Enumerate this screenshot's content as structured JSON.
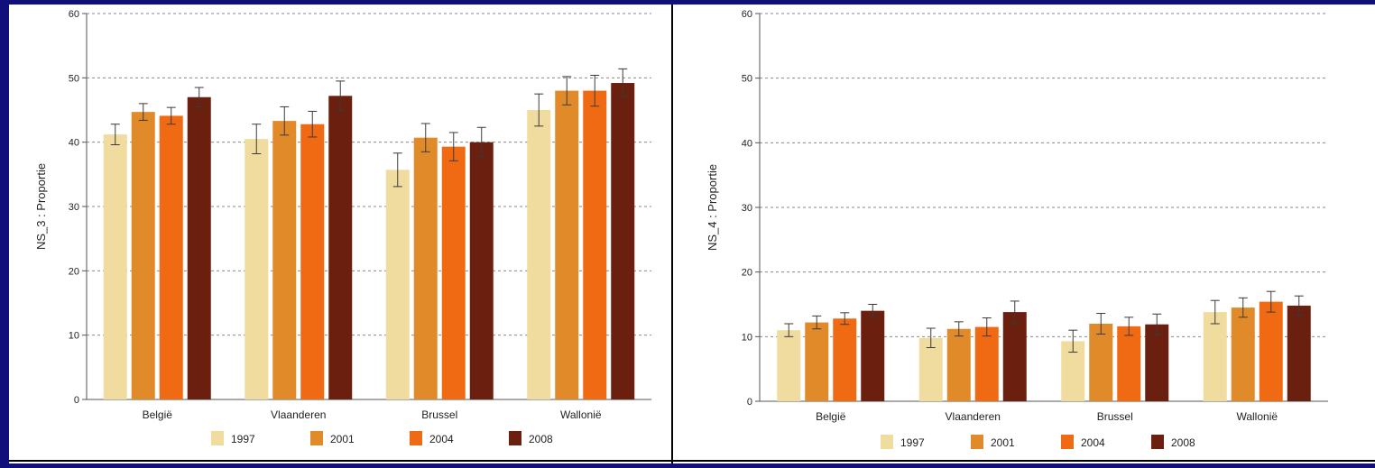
{
  "chart_data": [
    {
      "type": "bar",
      "ylabel": "NS_3 : Proportie",
      "categories": [
        "België",
        "Vlaanderen",
        "Brussel",
        "Wallonië"
      ],
      "ylim": [
        0,
        60
      ],
      "yticks": [
        0,
        10,
        20,
        30,
        40,
        50,
        60
      ],
      "grid": true,
      "legend_position": "bottom",
      "series": [
        {
          "name": "1997",
          "color": "#f0dc9e",
          "values": [
            41.2,
            40.5,
            35.7,
            45.0
          ],
          "error": [
            1.6,
            2.3,
            2.6,
            2.5
          ]
        },
        {
          "name": "2001",
          "color": "#e08a2a",
          "values": [
            44.7,
            43.3,
            40.7,
            48.0
          ],
          "error": [
            1.3,
            2.2,
            2.2,
            2.2
          ]
        },
        {
          "name": "2004",
          "color": "#f06a14",
          "values": [
            44.1,
            42.8,
            39.3,
            48.0
          ],
          "error": [
            1.3,
            2.0,
            2.2,
            2.4
          ]
        },
        {
          "name": "2008",
          "color": "#6b1f0e",
          "values": [
            47.0,
            47.2,
            40.0,
            49.2
          ],
          "error": [
            1.5,
            2.3,
            2.3,
            2.2
          ]
        }
      ]
    },
    {
      "type": "bar",
      "ylabel": "NS_4 : Proportie",
      "categories": [
        "België",
        "Vlaanderen",
        "Brussel",
        "Wallonië"
      ],
      "ylim": [
        0,
        60
      ],
      "yticks": [
        0,
        10,
        20,
        30,
        40,
        50,
        60
      ],
      "grid": true,
      "legend_position": "bottom",
      "series": [
        {
          "name": "1997",
          "color": "#f0dc9e",
          "values": [
            11.0,
            9.8,
            9.3,
            13.8
          ],
          "error": [
            1.0,
            1.5,
            1.7,
            1.8
          ]
        },
        {
          "name": "2001",
          "color": "#e08a2a",
          "values": [
            12.2,
            11.2,
            12.0,
            14.5
          ],
          "error": [
            1.0,
            1.1,
            1.6,
            1.5
          ]
        },
        {
          "name": "2004",
          "color": "#f06a14",
          "values": [
            12.8,
            11.5,
            11.6,
            15.4
          ],
          "error": [
            0.9,
            1.4,
            1.4,
            1.6
          ]
        },
        {
          "name": "2008",
          "color": "#6b1f0e",
          "values": [
            14.0,
            13.8,
            11.9,
            14.8
          ],
          "error": [
            1.0,
            1.7,
            1.6,
            1.5
          ]
        }
      ]
    }
  ]
}
